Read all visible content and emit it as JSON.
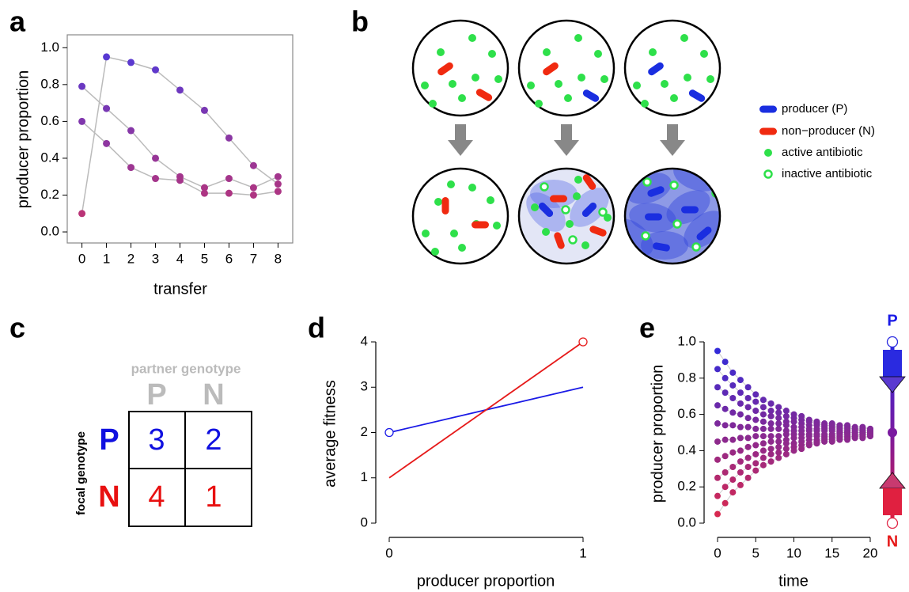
{
  "chart_data": [
    {
      "type": "line",
      "panel_label": "a",
      "xlabel": "transfer",
      "ylabel": "producer proportion",
      "x": [
        0,
        1,
        2,
        3,
        4,
        5,
        6,
        7,
        8
      ],
      "series": [
        {
          "values": [
            0.1,
            0.95,
            0.92,
            0.88,
            0.77,
            0.66,
            0.51,
            0.36,
            0.26
          ]
        },
        {
          "values": [
            0.79,
            0.67,
            0.55,
            0.4,
            0.3,
            0.24,
            0.29,
            0.24,
            0.3
          ]
        },
        {
          "values": [
            0.6,
            0.48,
            0.35,
            0.29,
            0.28,
            0.21,
            0.21,
            0.2,
            0.22
          ]
        }
      ],
      "xlim": [
        -0.6,
        8.6
      ],
      "ylim": [
        -0.06,
        1.07
      ],
      "xticks": [
        0,
        1,
        2,
        3,
        4,
        5,
        6,
        7,
        8
      ],
      "yticks": [
        {
          "value": 0,
          "label": "0.0"
        },
        {
          "value": 0.2,
          "label": "0.2"
        },
        {
          "value": 0.4,
          "label": "0.4"
        },
        {
          "value": 0.6,
          "label": "0.6"
        },
        {
          "value": 0.8,
          "label": "0.8"
        },
        {
          "value": 1,
          "label": "1.0"
        }
      ],
      "frame": "box",
      "line_color": "#bbbbbb",
      "markers": true,
      "marker_color_scale": [
        "#cc3366",
        "#4a3adf"
      ]
    },
    {
      "type": "line",
      "panel_label": "d",
      "xlabel": "producer proportion",
      "ylabel": "average fitness",
      "x": [
        0,
        1
      ],
      "series": [
        {
          "color": "#1a1ae6",
          "values": [
            2,
            3
          ],
          "open_marker": 0
        },
        {
          "color": "#e61a1a",
          "values": [
            1,
            4
          ],
          "open_marker": 1
        }
      ],
      "xlim": [
        0,
        1
      ],
      "ylim": [
        0,
        4
      ],
      "xticks": [
        0,
        1
      ],
      "yticks": [
        0,
        1,
        2,
        3,
        4
      ],
      "frame": "offset"
    },
    {
      "type": "line",
      "panel_label": "e",
      "xlabel": "time",
      "ylabel": "producer proportion",
      "x": [
        0,
        1,
        2,
        3,
        4,
        5,
        6,
        7,
        8,
        9,
        10,
        11,
        12,
        13,
        14,
        15,
        16,
        17,
        18,
        19,
        20
      ],
      "series": [
        {
          "values": [
            0.95,
            0.89,
            0.83,
            0.79,
            0.75,
            0.71,
            0.68,
            0.66,
            0.64,
            0.62,
            0.6,
            0.59,
            0.57,
            0.56,
            0.55,
            0.55,
            0.54,
            0.54,
            0.53,
            0.53,
            0.52
          ]
        },
        {
          "values": [
            0.85,
            0.8,
            0.76,
            0.72,
            0.69,
            0.67,
            0.64,
            0.62,
            0.61,
            0.59,
            0.58,
            0.57,
            0.56,
            0.55,
            0.54,
            0.54,
            0.53,
            0.53,
            0.52,
            0.52,
            0.52
          ]
        },
        {
          "values": [
            0.75,
            0.72,
            0.69,
            0.66,
            0.64,
            0.62,
            0.6,
            0.59,
            0.58,
            0.56,
            0.56,
            0.55,
            0.54,
            0.54,
            0.53,
            0.53,
            0.52,
            0.52,
            0.52,
            0.51,
            0.51
          ]
        },
        {
          "values": [
            0.65,
            0.63,
            0.61,
            0.6,
            0.58,
            0.57,
            0.56,
            0.55,
            0.55,
            0.54,
            0.53,
            0.53,
            0.52,
            0.52,
            0.52,
            0.52,
            0.51,
            0.51,
            0.51,
            0.51,
            0.51
          ]
        },
        {
          "values": [
            0.55,
            0.54,
            0.54,
            0.53,
            0.53,
            0.52,
            0.52,
            0.52,
            0.52,
            0.51,
            0.51,
            0.51,
            0.51,
            0.51,
            0.51,
            0.51,
            0.5,
            0.5,
            0.5,
            0.5,
            0.5
          ]
        },
        {
          "values": [
            0.45,
            0.46,
            0.46,
            0.47,
            0.47,
            0.48,
            0.48,
            0.48,
            0.48,
            0.49,
            0.49,
            0.49,
            0.49,
            0.49,
            0.49,
            0.49,
            0.5,
            0.5,
            0.5,
            0.5,
            0.5
          ]
        },
        {
          "values": [
            0.35,
            0.37,
            0.39,
            0.4,
            0.42,
            0.43,
            0.44,
            0.45,
            0.45,
            0.46,
            0.47,
            0.47,
            0.48,
            0.48,
            0.48,
            0.48,
            0.49,
            0.49,
            0.49,
            0.49,
            0.49
          ]
        },
        {
          "values": [
            0.25,
            0.28,
            0.31,
            0.34,
            0.36,
            0.38,
            0.4,
            0.41,
            0.42,
            0.44,
            0.44,
            0.45,
            0.46,
            0.46,
            0.47,
            0.47,
            0.48,
            0.48,
            0.48,
            0.49,
            0.49
          ]
        },
        {
          "values": [
            0.15,
            0.2,
            0.24,
            0.28,
            0.31,
            0.33,
            0.36,
            0.38,
            0.39,
            0.41,
            0.42,
            0.43,
            0.44,
            0.45,
            0.46,
            0.46,
            0.47,
            0.47,
            0.48,
            0.48,
            0.48
          ]
        },
        {
          "values": [
            0.05,
            0.11,
            0.17,
            0.21,
            0.25,
            0.29,
            0.32,
            0.34,
            0.36,
            0.38,
            0.4,
            0.41,
            0.43,
            0.44,
            0.45,
            0.45,
            0.46,
            0.46,
            0.47,
            0.47,
            0.48
          ]
        }
      ],
      "xlim": [
        0,
        20
      ],
      "ylim": [
        0,
        1
      ],
      "xticks": [
        0,
        5,
        10,
        15,
        20
      ],
      "yticks": [
        {
          "value": 0,
          "label": "0.0"
        },
        {
          "value": 0.2,
          "label": "0.2"
        },
        {
          "value": 0.4,
          "label": "0.4"
        },
        {
          "value": 0.6,
          "label": "0.6"
        },
        {
          "value": 0.8,
          "label": "0.8"
        },
        {
          "value": 1,
          "label": "1.0"
        }
      ],
      "frame": "offset",
      "line_color": "#cccccc",
      "markers": true,
      "marker_color_scale": [
        "#e02848",
        "#2a2ae0"
      ],
      "phase_line": {
        "top_label": "P",
        "bottom_label": "N",
        "unstable": [
          1,
          0
        ],
        "stable": [
          0.5
        ]
      }
    }
  ],
  "diagram_b": {
    "panel_label": "b",
    "legend": [
      "producer (P)",
      "non−producer (N)",
      "active antibiotic",
      "inactive antibiotic"
    ]
  },
  "table_c": {
    "panel_label": "c",
    "column_title": "partner genotype",
    "columns": [
      "P",
      "N"
    ],
    "row_title": "focal genotype",
    "rows": [
      {
        "label": "P",
        "cells": [
          3,
          2
        ]
      },
      {
        "label": "N",
        "cells": [
          4,
          1
        ]
      }
    ]
  }
}
